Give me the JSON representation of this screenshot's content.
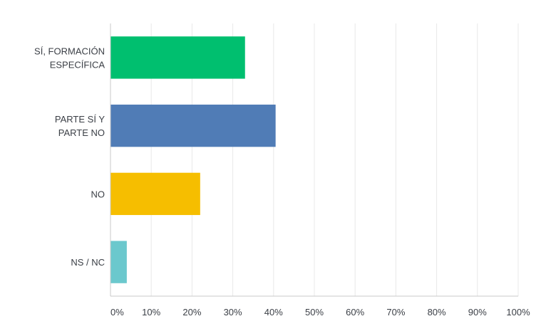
{
  "chart_data": {
    "type": "bar",
    "orientation": "horizontal",
    "categories": [
      [
        "SÍ, FORMACIÓN",
        "ESPECÍFICA"
      ],
      [
        "PARTE SÍ Y",
        "PARTE NO"
      ],
      [
        "NO"
      ],
      [
        "NS / NC"
      ]
    ],
    "values": [
      33,
      40.5,
      22,
      4
    ],
    "colors": [
      "#00BF6F",
      "#507CB6",
      "#F6BE00",
      "#6BC8CD"
    ],
    "xlim": [
      0,
      100
    ],
    "xticks": [
      0,
      10,
      20,
      30,
      40,
      50,
      60,
      70,
      80,
      90,
      100
    ],
    "xtick_labels": [
      "0%",
      "10%",
      "20%",
      "30%",
      "40%",
      "50%",
      "60%",
      "70%",
      "80%",
      "90%",
      "100%"
    ],
    "grid": true,
    "legend": "none",
    "title": "",
    "xlabel": "",
    "ylabel": ""
  }
}
